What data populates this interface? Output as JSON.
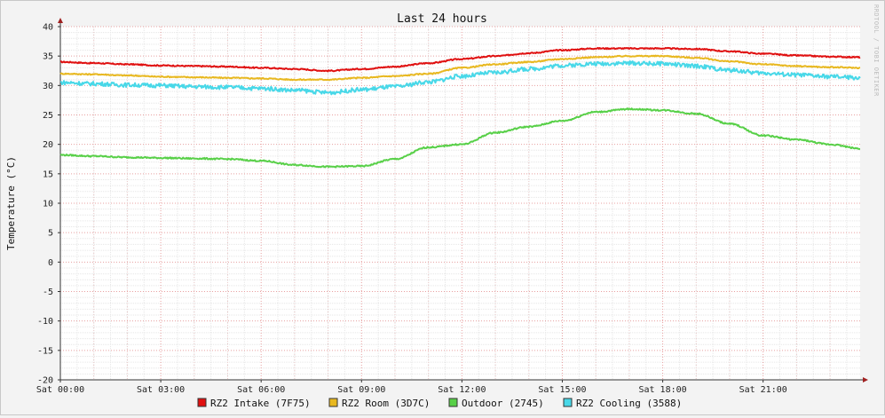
{
  "chart_data": {
    "type": "line",
    "title": "Last 24 hours",
    "xlabel": "",
    "ylabel": "Temperature (°C)",
    "watermark": "RRDTOOL / TOBI OETIKER",
    "ylim": [
      -20,
      40
    ],
    "y_ticks": [
      40,
      35,
      30,
      25,
      20,
      15,
      10,
      5,
      0,
      -5,
      -10,
      -15,
      -20
    ],
    "xlim_hours": [
      0,
      23.9
    ],
    "x_ticks": [
      {
        "hour": 0,
        "label": "Sat 00:00"
      },
      {
        "hour": 3,
        "label": "Sat 03:00"
      },
      {
        "hour": 6,
        "label": "Sat 06:00"
      },
      {
        "hour": 9,
        "label": "Sat 09:00"
      },
      {
        "hour": 12,
        "label": "Sat 12:00"
      },
      {
        "hour": 15,
        "label": "Sat 15:00"
      },
      {
        "hour": 18,
        "label": "Sat 18:00"
      },
      {
        "hour": 21,
        "label": "Sat 21:00"
      }
    ],
    "grid": true,
    "legend_position": "bottom",
    "x": [
      0,
      1,
      2,
      3,
      4,
      5,
      6,
      7,
      8,
      9,
      10,
      11,
      12,
      13,
      14,
      15,
      16,
      17,
      18,
      19,
      20,
      21,
      22,
      23,
      23.9
    ],
    "series": [
      {
        "name": "RZ2 Intake (7F75)",
        "color": "#e01010",
        "values": [
          34.0,
          33.8,
          33.6,
          33.4,
          33.3,
          33.2,
          33.0,
          32.8,
          32.5,
          32.8,
          33.2,
          33.8,
          34.5,
          35.0,
          35.5,
          36.0,
          36.3,
          36.3,
          36.3,
          36.2,
          35.8,
          35.4,
          35.1,
          34.9,
          34.8
        ]
      },
      {
        "name": "RZ2 Room (3D7C)",
        "color": "#e8b820",
        "values": [
          32.0,
          31.9,
          31.7,
          31.5,
          31.4,
          31.3,
          31.2,
          31.0,
          31.0,
          31.3,
          31.6,
          32.0,
          33.0,
          33.6,
          34.0,
          34.5,
          34.8,
          35.0,
          35.0,
          34.7,
          34.1,
          33.6,
          33.3,
          33.1,
          33.0
        ]
      },
      {
        "name": "Outdoor (2745)",
        "color": "#58d048",
        "values": [
          18.2,
          18.0,
          17.8,
          17.7,
          17.6,
          17.5,
          17.2,
          16.5,
          16.2,
          16.3,
          17.5,
          19.5,
          20.0,
          22.0,
          23.0,
          24.0,
          25.5,
          26.0,
          25.8,
          25.2,
          23.5,
          21.5,
          20.8,
          20.0,
          19.3
        ]
      },
      {
        "name": "RZ2 Cooling (3588)",
        "color": "#48d8e8",
        "values": [
          30.5,
          30.3,
          30.1,
          30.0,
          29.8,
          29.7,
          29.5,
          29.2,
          28.8,
          29.3,
          29.8,
          30.6,
          31.6,
          32.2,
          32.8,
          33.4,
          33.7,
          33.8,
          33.7,
          33.3,
          32.6,
          32.1,
          31.8,
          31.5,
          31.3
        ]
      }
    ]
  }
}
